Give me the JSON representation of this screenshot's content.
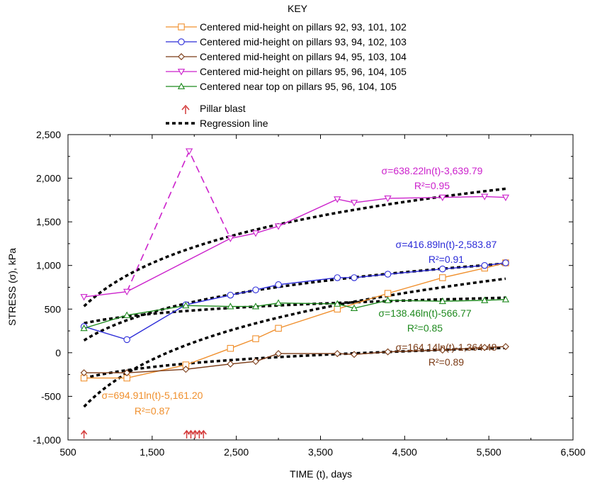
{
  "chart_data": {
    "type": "line",
    "xlabel": "TIME (t), days",
    "ylabel": "STRESS (σ), kPa",
    "xlim": [
      500,
      6500
    ],
    "ylim": [
      -1000,
      2500
    ],
    "x_ticks": [
      "500",
      "1,500",
      "2,500",
      "3,500",
      "4,500",
      "5,500",
      "6,500"
    ],
    "y_ticks": [
      "-1,000",
      "-500",
      "0",
      "500",
      "1,000",
      "1,500",
      "2,000",
      "2,500"
    ],
    "grid": false,
    "legend": {
      "title": "KEY",
      "placement": "top",
      "blast_label": "Pillar blast",
      "regression_label": "Regression line"
    },
    "series": [
      {
        "name": "Centered mid-height on pillars 92, 93, 101, 102",
        "color": "#f0902e",
        "marker": "square",
        "x": [
          690,
          1200,
          1900,
          2430,
          2730,
          3000,
          3700,
          4300,
          4950,
          5450,
          5700
        ],
        "y": [
          -290,
          -290,
          -140,
          50,
          160,
          280,
          500,
          680,
          860,
          970,
          1030
        ]
      },
      {
        "name": "Centered mid-height on pillars 93, 94, 102, 103",
        "color": "#2c2cd8",
        "marker": "circle",
        "x": [
          690,
          1200,
          1900,
          2430,
          2730,
          3000,
          3700,
          3900,
          4300,
          4950,
          5450,
          5700
        ],
        "y": [
          300,
          150,
          550,
          660,
          720,
          780,
          860,
          860,
          900,
          960,
          1000,
          1030
        ]
      },
      {
        "name": "Centered mid-height on pillars 94, 95, 103, 104",
        "color": "#7b3b16",
        "marker": "diamond",
        "x": [
          690,
          1200,
          1900,
          2430,
          2730,
          3000,
          3700,
          3900,
          4300,
          4950,
          5450,
          5700
        ],
        "y": [
          -230,
          -230,
          -190,
          -130,
          -100,
          -10,
          -10,
          -20,
          10,
          30,
          60,
          70
        ]
      },
      {
        "name": "Centered mid-height on pillars 95, 96, 104, 105",
        "color": "#cc22cc",
        "marker": "triangle-down",
        "x": [
          690,
          1200,
          2430,
          2730,
          3000,
          3700,
          3900,
          4300,
          4950,
          5450,
          5700
        ],
        "y": [
          640,
          700,
          1310,
          1370,
          1450,
          1760,
          1720,
          1770,
          1780,
          1790,
          1780
        ],
        "dashed_excursion": {
          "x": [
            1200,
            1940,
            2430
          ],
          "y": [
            700,
            2310,
            1310
          ]
        }
      },
      {
        "name": "Centered near top on pillars 95, 96, 104, 105",
        "color": "#1f8a1f",
        "marker": "triangle-up",
        "x": [
          690,
          1200,
          1900,
          2430,
          2730,
          3000,
          3700,
          3900,
          4300,
          4950,
          5450,
          5700
        ],
        "y": [
          280,
          430,
          540,
          530,
          530,
          570,
          560,
          510,
          600,
          590,
          600,
          610
        ]
      }
    ],
    "regressions": [
      {
        "equation": "σ=694.91ln(t)-5,161.20",
        "r2": "R²=0.87",
        "a": 694.91,
        "b": -5161.2,
        "color": "#f0902e"
      },
      {
        "equation": "σ=416.89ln(t)-2,583.87",
        "r2": "R²=0.91",
        "a": 416.89,
        "b": -2583.87,
        "color": "#2c2cd8"
      },
      {
        "equation": "σ=164.14ln(t)-1,364.48",
        "r2": "R²=0.89",
        "a": 164.14,
        "b": -1364.48,
        "color": "#7b3b16"
      },
      {
        "equation": "σ=638.22ln(t)-3,639.79",
        "r2": "R²=0.95",
        "a": 638.22,
        "b": -3639.79,
        "color": "#cc22cc"
      },
      {
        "equation": "σ=138.46ln(t)-566.77",
        "r2": "R²=0.85",
        "a": 138.46,
        "b": -566.77,
        "color": "#1f8a1f"
      }
    ],
    "pillar_blasts": [
      690,
      1910,
      1960,
      2010,
      2060,
      2110
    ],
    "blast_color": "#d43a3a",
    "regression_color": "#000000"
  }
}
